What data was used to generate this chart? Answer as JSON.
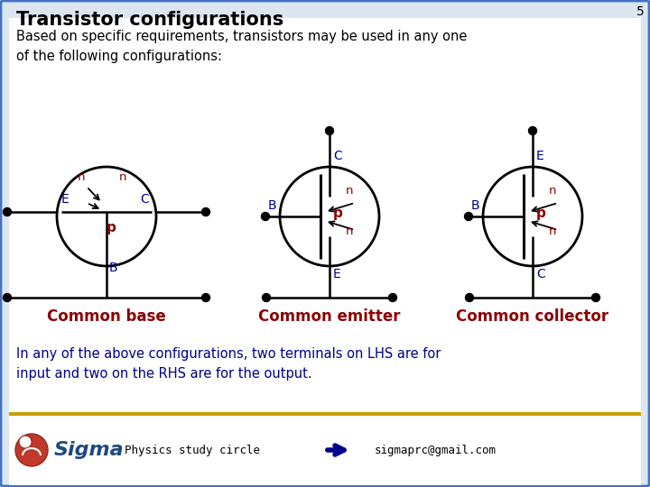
{
  "title": "Transistor configurations",
  "slide_number": "5",
  "subtitle": "Based on specific requirements, transistors may be used in any one\nof the following configurations:",
  "labels": {
    "common_base": "Common base",
    "common_emitter": "Common emitter",
    "common_collector": "Common collector"
  },
  "footer_text": "In any of the above configurations, two terminals on LHS are for\ninput and two on the RHS are for the output.",
  "footer_brand": "Physics study circle",
  "footer_email": "sigmaprc@gmail.com",
  "bg_color": "#ffffff",
  "outer_bg": "#dce6f1",
  "title_color": "#000000",
  "label_color": "#8B0000",
  "node_label_color": "#00008B",
  "p_label_color": "#8B0000",
  "n_label_color": "#8B0000",
  "footer_text_color": "#00008B",
  "border_color": "#4472C4",
  "line_color": "#000000",
  "sigma_color": "#00008B",
  "sigma_text_color": "#1F497D",
  "footer_sep_color": "#C8A000"
}
